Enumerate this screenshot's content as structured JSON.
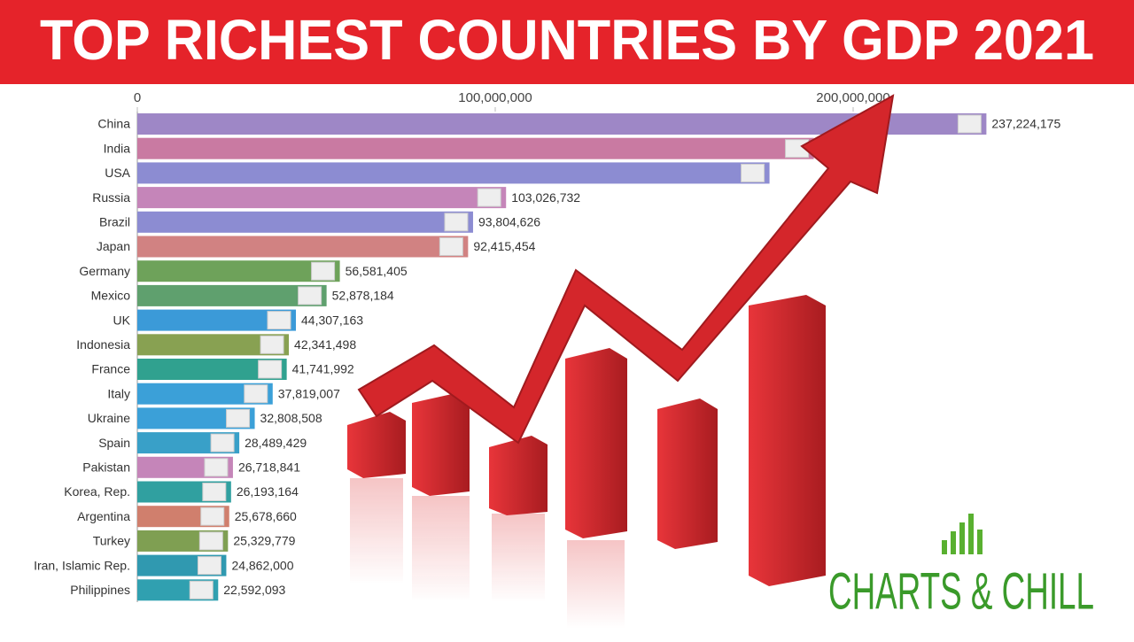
{
  "chart_data": {
    "type": "hbar",
    "title": "TOP RICHEST COUNTRIES BY GDP 2021",
    "logo": "CHARTS & CHILL",
    "categories": [
      "China",
      "India",
      "USA",
      "Russia",
      "Brazil",
      "Japan",
      "Germany",
      "Mexico",
      "UK",
      "Indonesia",
      "France",
      "Italy",
      "Ukraine",
      "Spain",
      "Pakistan",
      "Korea, Rep.",
      "Argentina",
      "Turkey",
      "Iran, Islamic Rep.",
      "Philippines"
    ],
    "values": [
      237224175,
      189000000,
      176630000,
      103026732,
      93804626,
      92415454,
      56581405,
      52878184,
      44307163,
      42341498,
      41741992,
      37819007,
      32808508,
      28489429,
      26718841,
      26193164,
      25678660,
      25329779,
      24862000,
      22592093
    ],
    "value_labels": [
      "237,224,175",
      null,
      null,
      "103,026,732",
      "93,804,626",
      "92,415,454",
      "56,581,405",
      "52,878,184",
      "44,307,163",
      "42,341,498",
      "41,741,992",
      "37,819,007",
      "32,808,508",
      "28,489,429",
      "26,718,841",
      "26,193,164",
      "25,678,660",
      "25,329,779",
      "24,862,000",
      "22,592,093"
    ],
    "colors": [
      "#9e87c6",
      "#c97aa2",
      "#8c8cd2",
      "#c585b9",
      "#8c8cd2",
      "#d18282",
      "#6ea25a",
      "#5fa06e",
      "#3b9ad8",
      "#88a152",
      "#30a18f",
      "#3ba0d8",
      "#3ba0d8",
      "#39a0c8",
      "#c585b9",
      "#30a0a0",
      "#d07f6d",
      "#7f9f52",
      "#3099b0",
      "#30a0b0"
    ],
    "xlim": [
      0,
      250000000
    ],
    "xticks": [
      0,
      {
        "value": 100000000,
        "label": "100,000,000"
      },
      {
        "value": 200000000,
        "label": "200,000,000"
      }
    ]
  }
}
